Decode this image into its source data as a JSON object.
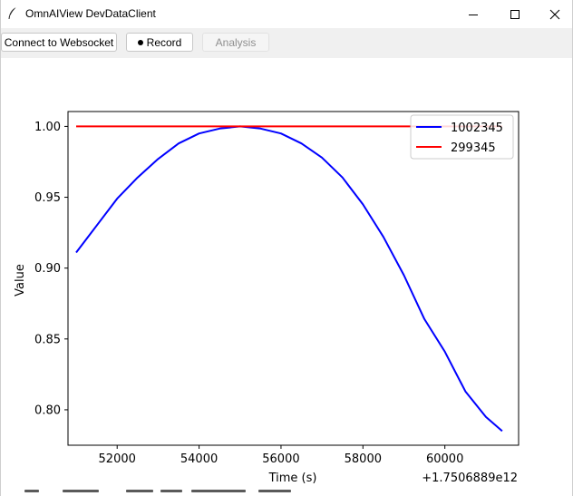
{
  "window": {
    "title": "OmnAIView DevDataClient",
    "minimize_icon": "minimize-icon",
    "maximize_icon": "maximize-icon",
    "close_icon": "close-icon"
  },
  "toolbar": {
    "connect_label": "Connect to Websocket",
    "record_label": "Record",
    "record_icon": "record-dot-icon",
    "analysis_label": "Analysis",
    "analysis_enabled": false
  },
  "chart_data": {
    "type": "line",
    "title": "",
    "xlabel": "Time (s)",
    "ylabel": "Value",
    "x_offset_label": "+1.7506889e12",
    "xlim": [
      50800,
      61800
    ],
    "ylim": [
      0.775,
      1.0105
    ],
    "xticks": [
      52000,
      54000,
      56000,
      58000,
      60000
    ],
    "xtick_labels": [
      "52000",
      "54000",
      "56000",
      "58000",
      "60000"
    ],
    "yticks": [
      0.8,
      0.85,
      0.9,
      0.95,
      1.0
    ],
    "ytick_labels": [
      "0.80",
      "0.85",
      "0.90",
      "0.95",
      "1.00"
    ],
    "grid": false,
    "legend_position": "top-right",
    "series": [
      {
        "name": "1002345",
        "color": "#0000ff",
        "x": [
          51000,
          51500,
          52000,
          52500,
          53000,
          53500,
          54000,
          54500,
          55000,
          55500,
          56000,
          56500,
          57000,
          57500,
          58000,
          58500,
          59000,
          59500,
          60000,
          60500,
          61000,
          61400
        ],
        "y": [
          0.911,
          0.93,
          0.949,
          0.964,
          0.977,
          0.988,
          0.995,
          0.9985,
          1.0,
          0.9985,
          0.995,
          0.988,
          0.978,
          0.964,
          0.945,
          0.922,
          0.895,
          0.864,
          0.841,
          0.813,
          0.795,
          0.785
        ]
      },
      {
        "name": "299345",
        "color": "#ff0000",
        "x": [
          51000,
          61400
        ],
        "y": [
          1.0,
          1.0
        ]
      }
    ]
  }
}
